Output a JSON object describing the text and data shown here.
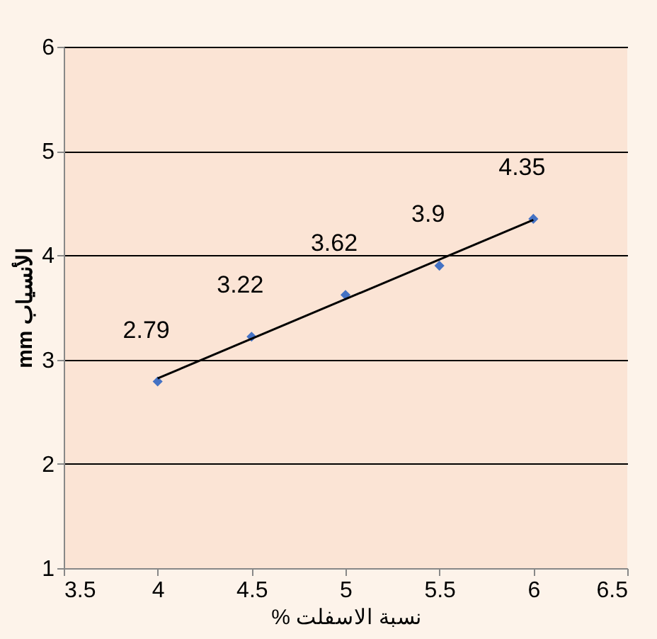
{
  "chart_data": {
    "type": "scatter",
    "xlabel": "% نسبة الاسفلت",
    "ylabel": "mm الأنسياب",
    "x": [
      4,
      4.5,
      5,
      5.5,
      6
    ],
    "series": [
      {
        "color": "#4472c4",
        "values": [
          2.79,
          3.22,
          3.62,
          3.9,
          4.35
        ],
        "value_labels": [
          "2.79",
          "3.22",
          "3.62",
          "3.9",
          "4.35"
        ],
        "marker": "diamond"
      },
      {
        "type": "line",
        "color": "#000000",
        "x": [
          4,
          6
        ],
        "values": [
          2.82,
          4.34
        ],
        "marker": "none"
      }
    ],
    "xlim": [
      3.5,
      6.5
    ],
    "xticks": [
      3.5,
      4,
      4.5,
      5,
      5.5,
      6,
      6.5
    ],
    "ylim": [
      1,
      6
    ],
    "yticks": [
      1,
      2,
      3,
      4,
      5,
      6
    ],
    "grid": "y"
  }
}
